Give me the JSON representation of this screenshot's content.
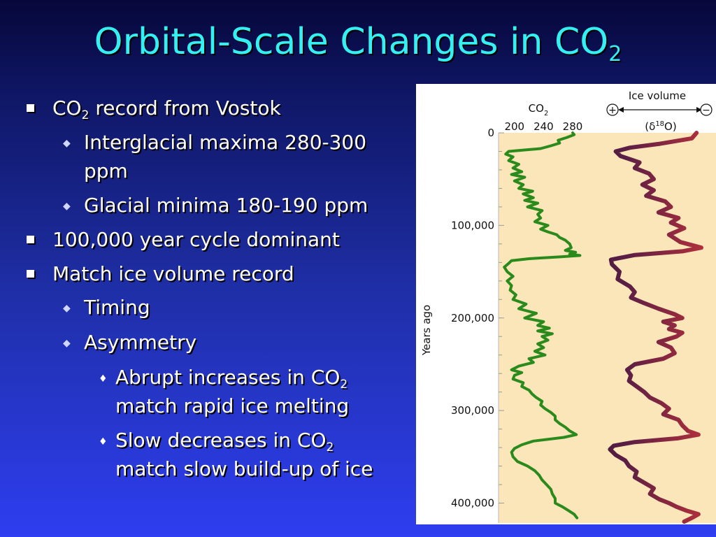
{
  "slide": {
    "title_main": "Orbital-Scale Changes in CO",
    "title_sub": "2"
  },
  "bullets": {
    "b1": {
      "pre": "CO",
      "sub": "2",
      "post": " record from Vostok"
    },
    "b1a_line1": "Interglacial maxima 280-300",
    "b1a_line2": "ppm",
    "b1b": "Glacial minima 180-190 ppm",
    "b2": "100,000 year cycle dominant",
    "b3": "Match ice volume record",
    "b3a": "Timing",
    "b3b": "Asymmetry",
    "b3b1": {
      "line1_pre": "Abrupt increases in CO",
      "line1_sub": "2",
      "line2": "match rapid ice melting"
    },
    "b3b2": {
      "line1_pre": "Slow decreases in CO",
      "line1_sub": "2",
      "line2": "match slow build-up of ice"
    }
  },
  "chart_data": {
    "type": "line",
    "colors": {
      "co2": "#2a8a1c",
      "panel_bg": "#fae6b8",
      "ice_top": "#b0303c",
      "ice_low": "#191230"
    },
    "y_axis": {
      "label": "Years ago",
      "range": [
        0,
        420000
      ],
      "ticks": [
        0,
        100000,
        200000,
        300000,
        400000
      ],
      "tick_labels": [
        "0",
        "100,000",
        "200,000",
        "300,000",
        "400,000"
      ]
    },
    "co2_axis": {
      "label_main": "CO",
      "label_sub": "2",
      "ticks": [
        200,
        240,
        280
      ],
      "tick_labels": [
        "200",
        "240",
        "280"
      ],
      "range": [
        180,
        305
      ]
    },
    "ice_axis": {
      "label": "Ice volume",
      "sub_main": "(δ",
      "sub_sup": "18",
      "sub_end": "O)",
      "plus_symbol": "+",
      "minus_symbol": "−"
    },
    "co2_series": {
      "name": "CO2",
      "points": [
        [
          0,
          280
        ],
        [
          2000,
          282
        ],
        [
          5000,
          272
        ],
        [
          8000,
          260
        ],
        [
          11000,
          262
        ],
        [
          14000,
          250
        ],
        [
          17000,
          236
        ],
        [
          20000,
          192
        ],
        [
          23000,
          188
        ],
        [
          26000,
          198
        ],
        [
          30000,
          192
        ],
        [
          34000,
          206
        ],
        [
          38000,
          198
        ],
        [
          42000,
          210
        ],
        [
          45000,
          196
        ],
        [
          48000,
          214
        ],
        [
          52000,
          200
        ],
        [
          56000,
          212
        ],
        [
          60000,
          206
        ],
        [
          63000,
          225
        ],
        [
          66000,
          212
        ],
        [
          70000,
          226
        ],
        [
          73000,
          214
        ],
        [
          76000,
          232
        ],
        [
          80000,
          218
        ],
        [
          84000,
          238
        ],
        [
          88000,
          232
        ],
        [
          92000,
          236
        ],
        [
          96000,
          228
        ],
        [
          100000,
          246
        ],
        [
          104000,
          236
        ],
        [
          107000,
          246
        ],
        [
          110000,
          258
        ],
        [
          113000,
          262
        ],
        [
          116000,
          270
        ],
        [
          120000,
          276
        ],
        [
          124000,
          278
        ],
        [
          127000,
          270
        ],
        [
          129000,
          284
        ],
        [
          131000,
          276
        ],
        [
          132500,
          290
        ],
        [
          134000,
          262
        ],
        [
          136000,
          220
        ],
        [
          138000,
          196
        ],
        [
          141000,
          192
        ],
        [
          145000,
          186
        ],
        [
          150000,
          190
        ],
        [
          155000,
          198
        ],
        [
          160000,
          190
        ],
        [
          165000,
          196
        ],
        [
          170000,
          194
        ],
        [
          175000,
          202
        ],
        [
          180000,
          198
        ],
        [
          185000,
          216
        ],
        [
          190000,
          206
        ],
        [
          195000,
          230
        ],
        [
          200000,
          214
        ],
        [
          204000,
          240
        ],
        [
          208000,
          232
        ],
        [
          211000,
          248
        ],
        [
          214000,
          232
        ],
        [
          217000,
          252
        ],
        [
          220000,
          238
        ],
        [
          224000,
          246
        ],
        [
          228000,
          232
        ],
        [
          232000,
          240
        ],
        [
          236000,
          228
        ],
        [
          240000,
          242
        ],
        [
          244000,
          220
        ],
        [
          248000,
          226
        ],
        [
          252000,
          206
        ],
        [
          256000,
          196
        ],
        [
          259000,
          210
        ],
        [
          262000,
          200
        ],
        [
          266000,
          198
        ],
        [
          270000,
          212
        ],
        [
          274000,
          210
        ],
        [
          278000,
          220
        ],
        [
          282000,
          224
        ],
        [
          286000,
          230
        ],
        [
          290000,
          238
        ],
        [
          294000,
          236
        ],
        [
          298000,
          242
        ],
        [
          302000,
          250
        ],
        [
          306000,
          256
        ],
        [
          310000,
          256
        ],
        [
          314000,
          262
        ],
        [
          318000,
          270
        ],
        [
          322000,
          276
        ],
        [
          326000,
          285
        ],
        [
          329000,
          268
        ],
        [
          333000,
          226
        ],
        [
          337000,
          210
        ],
        [
          341000,
          200
        ],
        [
          345000,
          196
        ],
        [
          350000,
          198
        ],
        [
          355000,
          204
        ],
        [
          360000,
          218
        ],
        [
          365000,
          228
        ],
        [
          370000,
          234
        ],
        [
          375000,
          238
        ],
        [
          380000,
          244
        ],
        [
          385000,
          250
        ],
        [
          390000,
          252
        ],
        [
          395000,
          256
        ],
        [
          400000,
          256
        ],
        [
          404000,
          266
        ],
        [
          408000,
          274
        ],
        [
          412000,
          282
        ],
        [
          416000,
          286
        ]
      ]
    },
    "ice_series": {
      "name": "Ice volume (δ18O)",
      "points": [
        [
          0,
          0.95
        ],
        [
          6000,
          0.9
        ],
        [
          12000,
          0.55
        ],
        [
          16000,
          0.25
        ],
        [
          20000,
          0.1
        ],
        [
          25000,
          0.15
        ],
        [
          32000,
          0.35
        ],
        [
          38000,
          0.3
        ],
        [
          44000,
          0.45
        ],
        [
          50000,
          0.5
        ],
        [
          56000,
          0.38
        ],
        [
          62000,
          0.5
        ],
        [
          68000,
          0.42
        ],
        [
          74000,
          0.62
        ],
        [
          80000,
          0.68
        ],
        [
          86000,
          0.55
        ],
        [
          92000,
          0.76
        ],
        [
          97000,
          0.68
        ],
        [
          103000,
          0.82
        ],
        [
          110000,
          0.66
        ],
        [
          118000,
          0.78
        ],
        [
          124000,
          1.0
        ],
        [
          128000,
          0.8
        ],
        [
          132000,
          0.3
        ],
        [
          137000,
          0.05
        ],
        [
          142000,
          0.06
        ],
        [
          150000,
          0.14
        ],
        [
          158000,
          0.12
        ],
        [
          166000,
          0.25
        ],
        [
          172000,
          0.3
        ],
        [
          178000,
          0.26
        ],
        [
          184000,
          0.4
        ],
        [
          190000,
          0.55
        ],
        [
          196000,
          0.72
        ],
        [
          200000,
          0.8
        ],
        [
          204000,
          0.6
        ],
        [
          208000,
          0.72
        ],
        [
          212000,
          0.66
        ],
        [
          216000,
          0.8
        ],
        [
          220000,
          0.74
        ],
        [
          226000,
          0.55
        ],
        [
          232000,
          0.68
        ],
        [
          238000,
          0.72
        ],
        [
          244000,
          0.6
        ],
        [
          250000,
          0.3
        ],
        [
          256000,
          0.22
        ],
        [
          262000,
          0.26
        ],
        [
          268000,
          0.24
        ],
        [
          274000,
          0.32
        ],
        [
          280000,
          0.4
        ],
        [
          286000,
          0.46
        ],
        [
          292000,
          0.58
        ],
        [
          298000,
          0.66
        ],
        [
          304000,
          0.6
        ],
        [
          310000,
          0.76
        ],
        [
          316000,
          0.8
        ],
        [
          322000,
          0.86
        ],
        [
          326000,
          0.97
        ],
        [
          330000,
          0.75
        ],
        [
          334000,
          0.3
        ],
        [
          338000,
          0.08
        ],
        [
          342000,
          0.04
        ],
        [
          348000,
          0.1
        ],
        [
          354000,
          0.2
        ],
        [
          360000,
          0.24
        ],
        [
          366000,
          0.32
        ],
        [
          372000,
          0.3
        ],
        [
          378000,
          0.4
        ],
        [
          384000,
          0.5
        ],
        [
          390000,
          0.46
        ],
        [
          396000,
          0.56
        ],
        [
          400000,
          0.66
        ],
        [
          404000,
          0.74
        ],
        [
          408000,
          0.84
        ],
        [
          412000,
          0.97
        ],
        [
          416000,
          0.9
        ],
        [
          420000,
          0.82
        ]
      ]
    }
  }
}
